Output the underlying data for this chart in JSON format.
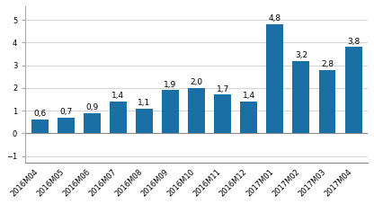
{
  "categories": [
    "2016M04",
    "2016M05",
    "2016M06",
    "2016M07",
    "2016M08",
    "2016M09",
    "2016M10",
    "2016M11",
    "2016M12",
    "2017M01",
    "2017M02",
    "2017M03",
    "2017M04"
  ],
  "values": [
    0.6,
    0.7,
    0.9,
    1.4,
    1.1,
    1.9,
    2.0,
    1.7,
    1.4,
    4.8,
    3.2,
    2.8,
    3.8
  ],
  "bar_color": "#1a6fa5",
  "ylim": [
    -1.3,
    5.6
  ],
  "yticks": [
    -1,
    0,
    1,
    2,
    3,
    4,
    5
  ],
  "label_fontsize": 6.5,
  "tick_fontsize": 6.0,
  "background_color": "#ffffff",
  "grid_color": "#cccccc"
}
